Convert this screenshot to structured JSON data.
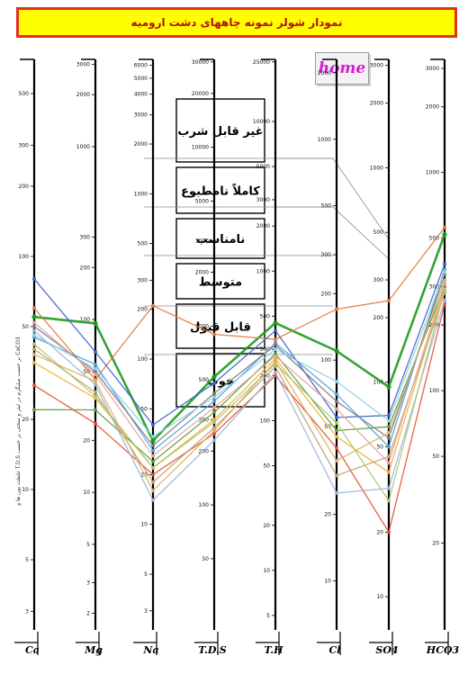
{
  "header": {
    "title": "نمودار شولر نمونه چاههای دشت ارومیه",
    "home_label": "home"
  },
  "chart_data": {
    "type": "line",
    "title": "نمودار شولر نمونه چاههای دشت ارومیه",
    "categories": [
      "Ca",
      "Mg",
      "Na",
      "T.D.S",
      "T.H",
      "Cl",
      "SO4",
      "HCO3"
    ],
    "y_scale": "log",
    "axes": [
      {
        "name": "Ca",
        "ticks": [
          3,
          5,
          10,
          20,
          50,
          100,
          200,
          300,
          500
        ]
      },
      {
        "name": "Mg",
        "ticks": [
          2,
          3,
          5,
          10,
          20,
          50,
          100,
          200,
          300,
          1000,
          2000,
          3000
        ]
      },
      {
        "name": "Na",
        "ticks": [
          3,
          5,
          10,
          20,
          50,
          100,
          200,
          300,
          500,
          1000,
          2000,
          3000,
          4000,
          5000,
          6000
        ]
      },
      {
        "name": "T.D.S",
        "ticks": [
          50,
          100,
          200,
          300,
          500,
          1000,
          2000,
          3000,
          5000,
          10000,
          20000,
          30000
        ]
      },
      {
        "name": "T.H",
        "ticks": [
          5,
          10,
          20,
          50,
          100,
          200,
          300,
          500,
          1000,
          2000,
          3000,
          5000,
          10000,
          25000
        ]
      },
      {
        "name": "Cl",
        "ticks": [
          10,
          20,
          50,
          100,
          200,
          300,
          500,
          1000,
          2000
        ]
      },
      {
        "name": "SO4",
        "ticks": [
          10,
          20,
          50,
          100,
          200,
          300,
          500,
          1000,
          2000,
          3000
        ]
      },
      {
        "name": "HCO3",
        "ticks": [
          20,
          50,
          100,
          200,
          300,
          500,
          1000,
          2000,
          3000
        ]
      }
    ],
    "zones": [
      "غیر قابل شرب",
      "کاملاً نامطبوع",
      "نامناسب",
      "متوسط",
      "قابل قبول",
      "خوب"
    ],
    "axis_note": "غلظت یون ها و T.D.S بر حسب میلیگرم در لیتر و سختی بر حسب CaCO3",
    "series": [
      {
        "color": "#1f9a1f",
        "values": [
          55,
          95,
          32,
          520,
          450,
          110,
          95,
          520
        ]
      },
      {
        "color": "#e07a3a",
        "values": [
          60,
          45,
          210,
          900,
          350,
          170,
          240,
          560
        ]
      },
      {
        "color": "#3a64c8",
        "values": [
          80,
          65,
          40,
          480,
          400,
          55,
          70,
          380
        ]
      },
      {
        "color": "#4a9fd8",
        "values": [
          45,
          55,
          28,
          380,
          330,
          70,
          50,
          360
        ]
      },
      {
        "color": "#f0b030",
        "values": [
          35,
          35,
          22,
          300,
          260,
          45,
          38,
          300
        ]
      },
      {
        "color": "#7a7a7a",
        "values": [
          50,
          50,
          30,
          420,
          320,
          65,
          55,
          340
        ]
      },
      {
        "color": "#e85030",
        "values": [
          28,
          25,
          20,
          250,
          200,
          40,
          20,
          250
        ]
      },
      {
        "color": "#5e9c3a",
        "values": [
          22,
          30,
          24,
          330,
          280,
          48,
          62,
          300
        ]
      },
      {
        "color": "#c0a070",
        "values": [
          40,
          38,
          18,
          270,
          230,
          30,
          45,
          280
        ]
      },
      {
        "color": "#9bb4dc",
        "values": [
          48,
          42,
          14,
          230,
          210,
          25,
          32,
          260
        ]
      },
      {
        "color": "#e8a0a0",
        "values": [
          52,
          48,
          26,
          350,
          270,
          60,
          42,
          310
        ]
      },
      {
        "color": "#a8c870",
        "values": [
          42,
          36,
          22,
          290,
          240,
          52,
          28,
          290
        ]
      },
      {
        "color": "#d9b060",
        "values": [
          38,
          44,
          16,
          260,
          250,
          35,
          58,
          320
        ]
      },
      {
        "color": "#8fd0e8",
        "values": [
          46,
          52,
          34,
          400,
          300,
          80,
          66,
          350
        ]
      }
    ]
  }
}
